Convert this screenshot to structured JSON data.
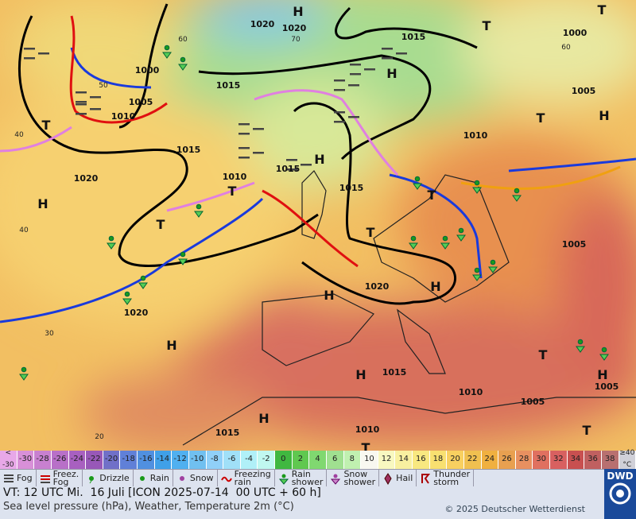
{
  "map": {
    "labels": [
      "1020",
      "H",
      "1020",
      "1015",
      "T",
      "1000",
      "T",
      "1000",
      "H",
      "1015",
      "1005",
      "1010",
      "1005",
      "T",
      "1010",
      "T",
      "H",
      "1015",
      "H",
      "1015",
      "1020",
      "1010",
      "T",
      "1015",
      "T",
      "H",
      "T",
      "T",
      "1005",
      "H",
      "H",
      "1020",
      "1020",
      "H",
      "T",
      "H",
      "1015",
      "1010",
      "1005",
      "H",
      "1005",
      "H",
      "1015",
      "1010",
      "T",
      "T"
    ],
    "temp_labels": [
      "60",
      "70",
      "50",
      "40",
      "30",
      "20",
      "40",
      "60"
    ]
  },
  "colorbar": [
    {
      "top": "<",
      "label": "-30"
    },
    {
      "label": "-30"
    },
    {
      "label": "-28"
    },
    {
      "label": "-26"
    },
    {
      "label": "-24"
    },
    {
      "label": "-22"
    },
    {
      "label": "-20"
    },
    {
      "label": "-18"
    },
    {
      "label": "-16"
    },
    {
      "label": "-14"
    },
    {
      "label": "-12"
    },
    {
      "label": "-10"
    },
    {
      "label": "-8"
    },
    {
      "label": "-6"
    },
    {
      "label": "-4"
    },
    {
      "label": "-2"
    },
    {
      "label": "0"
    },
    {
      "label": "2"
    },
    {
      "label": "4"
    },
    {
      "label": "6"
    },
    {
      "label": "8"
    },
    {
      "label": "10"
    },
    {
      "label": "12"
    },
    {
      "label": "14"
    },
    {
      "label": "16"
    },
    {
      "label": "18"
    },
    {
      "label": "20"
    },
    {
      "label": "22"
    },
    {
      "label": "24"
    },
    {
      "label": "26"
    },
    {
      "label": "28"
    },
    {
      "label": "30"
    },
    {
      "label": "32"
    },
    {
      "label": "34"
    },
    {
      "label": "36"
    },
    {
      "label": "38"
    },
    {
      "top": "≥40",
      "label": "°C"
    }
  ],
  "legend": [
    "Fog",
    "Freez.\nFog",
    "Drizzle",
    "Rain",
    "Snow",
    "Freezing\nrain",
    "Rain\nshower",
    "Snow\nshower",
    "Hail",
    "Thunder\nstorm"
  ],
  "footer": {
    "valid_time": "VT: 12 UTC Mi.  16 Juli [ICON 2025-07-14  00 UTC + 60 h]",
    "description": "Sea level pressure (hPa), Weather, Temperature 2m (°C)",
    "copyright": "© 2025 Deutscher Wetterdienst",
    "logo": "DWD"
  }
}
